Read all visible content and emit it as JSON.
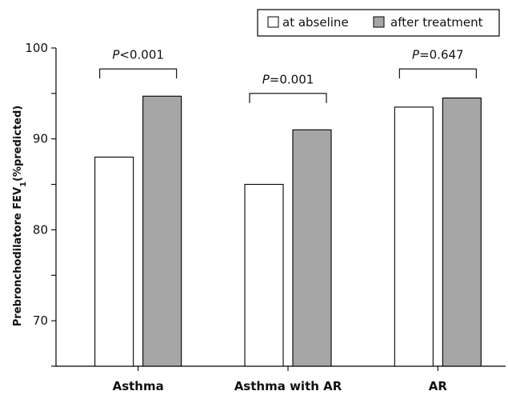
{
  "chart_data": {
    "type": "bar",
    "categories": [
      "Asthma",
      "Asthma with AR",
      "AR"
    ],
    "series": [
      {
        "name": "at abseline",
        "values": [
          88.0,
          85.0,
          93.5
        ],
        "color": "#ffffff"
      },
      {
        "name": "after treatment",
        "values": [
          94.7,
          91.0,
          94.5
        ],
        "color": "#a6a6a6"
      }
    ],
    "ylim": [
      65,
      100
    ],
    "yticks": [
      70,
      80,
      90,
      100
    ],
    "ylabel": {
      "main": "Prebronchodilatore FEV",
      "sub": "1",
      "suffix": "(%predicted)"
    },
    "xlabel": "",
    "grid": false,
    "legend_position": "top-right",
    "annotations": [
      {
        "category": "Asthma",
        "label_italic": "P",
        "label_rest": "<0.001",
        "bracket_y": 97.7,
        "text_y": 98.8
      },
      {
        "category": "Asthma with AR",
        "label_italic": "P",
        "label_rest": "=0.001",
        "bracket_y": 95.0,
        "text_y": 96.1
      },
      {
        "category": "AR",
        "label_italic": "P",
        "label_rest": "=0.647",
        "bracket_y": 97.7,
        "text_y": 98.8
      }
    ]
  }
}
